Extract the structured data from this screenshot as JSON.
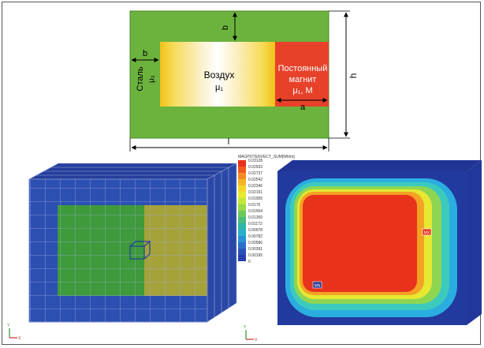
{
  "colors": {
    "steel_green": "#6cb33e",
    "magnet_red": "#e8412a",
    "mesh_blue": "#1f3fa0",
    "mesh_green": "#3e9a3a",
    "mesh_olive": "#a6a23a",
    "field_red": "#e83a1e"
  },
  "schematic": {
    "dim_b_top": "b",
    "dim_b_left": "b",
    "dim_h": "h",
    "dim_l": "l",
    "dim_a": "a",
    "steel_label": "Сталь",
    "steel_mu": "μ₂",
    "air_label": "Воздух",
    "air_mu": "μ₁",
    "magnet_line1": "Постоянный",
    "magnet_line2": "магнит",
    "magnet_mu": "μ₁, M"
  },
  "legend": {
    "title": "MAGPOTENVECT_SUM[Wb/m]",
    "values": [
      "0.03128",
      "0.02933",
      "0.02737",
      "0.02542",
      "0.02346",
      "0.02151",
      "0.01955",
      "0.0176",
      "0.01564",
      "0.01369",
      "0.01173",
      "0.00978",
      "0.00782",
      "0.00586",
      "0.00391",
      "0.00195",
      "0"
    ],
    "colors": [
      "#e8321c",
      "#ee5a1e",
      "#f38a22",
      "#f6b326",
      "#f5d42c",
      "#e6e832",
      "#c2e63a",
      "#9ad848",
      "#6cc85c",
      "#48bc7a",
      "#30b6a6",
      "#2aaecc",
      "#2a92d6",
      "#2a70cc",
      "#2a52bc",
      "#2640ae",
      "#1f2e9c"
    ]
  },
  "markers": {
    "max_label": "MX",
    "min_label": "MN"
  },
  "axis": {
    "y": "Y",
    "x": "X"
  }
}
